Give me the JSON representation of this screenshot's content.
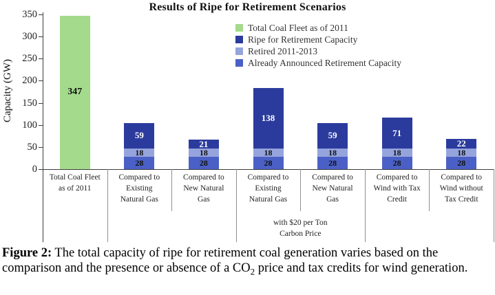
{
  "chart_data": {
    "type": "bar",
    "stacked": true,
    "title": "Results of Ripe for Retirement Scenarios",
    "ylabel": "Capacity (GW)",
    "ylim": [
      0,
      350
    ],
    "yticks": [
      0,
      50,
      100,
      150,
      200,
      250,
      300,
      350
    ],
    "grid": false,
    "legend_position": "upper-right-inside",
    "categories": [
      {
        "lines": [
          "Total Coal Fleet",
          "as of 2011"
        ]
      },
      {
        "lines": [
          "Compared to",
          "Existing",
          "Natural Gas"
        ]
      },
      {
        "lines": [
          "Compared to",
          "New Natural",
          "Gas"
        ]
      },
      {
        "lines": [
          "Compared to",
          "Existing",
          "Natural Gas"
        ]
      },
      {
        "lines": [
          "Compared to",
          "New Natural",
          "Gas"
        ]
      },
      {
        "lines": [
          "Compared to",
          "Wind with Tax",
          "Credit"
        ]
      },
      {
        "lines": [
          "Compared to",
          "Wind without",
          "Tax Credit"
        ]
      }
    ],
    "group_annotation": {
      "lines": [
        "with $20 per Ton",
        "Carbon Price"
      ],
      "start_category": 3,
      "end_category": 4
    },
    "series": [
      {
        "name": "Total Coal Fleet as of 2011",
        "key": "total",
        "color": "#a4da8c",
        "label_color": "#111111",
        "values": [
          347,
          0,
          0,
          0,
          0,
          0,
          0
        ]
      },
      {
        "name": "Already Announced Retirement Capacity",
        "key": "announced",
        "color": "#4b60c6",
        "label_color": "#111111",
        "values": [
          0,
          28,
          28,
          28,
          28,
          28,
          28
        ]
      },
      {
        "name": "Retired 2011-2013",
        "key": "retired",
        "color": "#95a4dc",
        "label_color": "#111111",
        "values": [
          0,
          18,
          18,
          18,
          18,
          18,
          18
        ]
      },
      {
        "name": "Ripe for Retirement Capacity",
        "key": "ripe",
        "color": "#2b3b9d",
        "label_color": "#ffffff",
        "values": [
          0,
          59,
          21,
          138,
          59,
          71,
          22
        ]
      }
    ],
    "legend": [
      {
        "label": "Total Coal Fleet as of 2011",
        "key": "total"
      },
      {
        "label": "Ripe for Retirement Capacity",
        "key": "ripe"
      },
      {
        "label": "Retired 2011-2013",
        "key": "retired"
      },
      {
        "label": "Already Announced Retirement Capacity",
        "key": "announced"
      }
    ]
  },
  "caption": {
    "prefix": "Figure 2:",
    "before_sub": " The total capacity of ripe for retirement coal generation varies based on the comparison and the presence or absence of a CO",
    "sub": "2",
    "after_sub": " price and tax credits for wind generation."
  }
}
